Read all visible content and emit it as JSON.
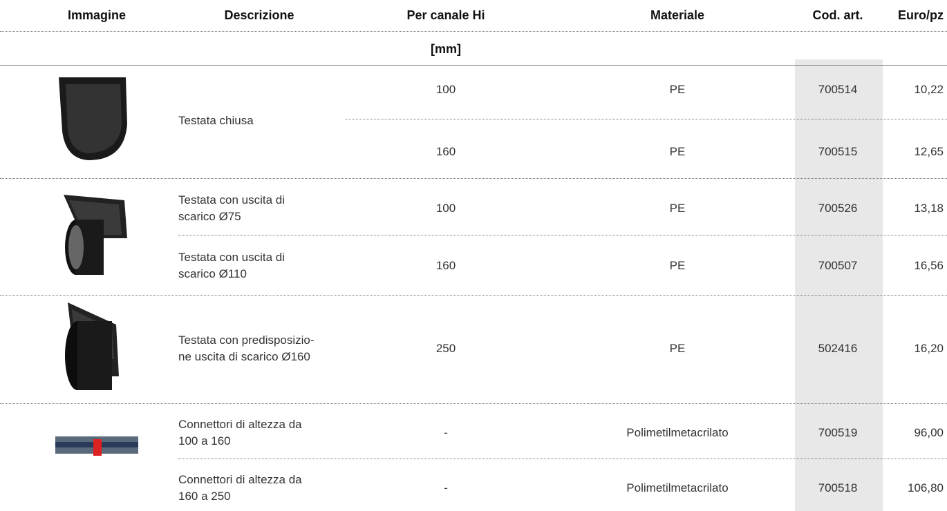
{
  "header": {
    "columns": [
      "Immagine",
      "Descrizione",
      "Per canale Hi",
      "Materiale",
      "Cod. art.",
      "Euro/pz"
    ],
    "unit": "[mm]"
  },
  "groups": [
    {
      "description": [
        "Testata chiusa"
      ],
      "rows": [
        {
          "hi": "100",
          "material": "PE",
          "code": "700514",
          "price": "10,22"
        },
        {
          "hi": "160",
          "material": "PE",
          "code": "700515",
          "price": "12,65"
        }
      ]
    },
    {
      "rows": [
        {
          "description": [
            "Testata con uscita di",
            "scarico Ø75"
          ],
          "hi": "100",
          "material": "PE",
          "code": "700526",
          "price": "13,18"
        },
        {
          "description": [
            "Testata con uscita di",
            "scarico Ø110"
          ],
          "hi": "160",
          "material": "PE",
          "code": "700507",
          "price": "16,56"
        }
      ]
    },
    {
      "description": [
        "Testata con predisposizio-",
        "ne uscita di scarico Ø160"
      ],
      "rows": [
        {
          "hi": "250",
          "material": "PE",
          "code": "502416",
          "price": "16,20"
        }
      ]
    },
    {
      "rows": [
        {
          "description": [
            "Connettori di altezza da",
            "100 a 160"
          ],
          "hi": "-",
          "material": "Polimetilmetacrilato",
          "code": "700519",
          "price": "96,00"
        },
        {
          "description": [
            "Connettori di altezza da",
            "160 a 250"
          ],
          "hi": "-",
          "material": "Polimetilmetacrilato",
          "code": "700518",
          "price": "106,80"
        }
      ]
    }
  ]
}
